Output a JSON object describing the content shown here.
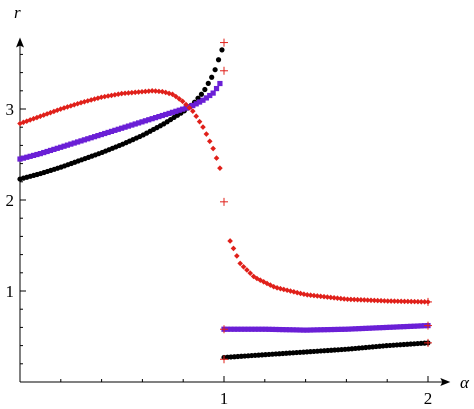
{
  "chart_data": {
    "type": "scatter",
    "title": "",
    "xlabel": "α",
    "ylabel": "r",
    "xlim": [
      0,
      2.08
    ],
    "ylim": [
      0,
      3.72
    ],
    "x_ticks": [
      {
        "value": 1,
        "label": "1"
      },
      {
        "value": 2,
        "label": "2"
      }
    ],
    "y_ticks": [
      {
        "value": 1,
        "label": "1"
      },
      {
        "value": 2,
        "label": "2"
      },
      {
        "value": 3,
        "label": "3"
      }
    ],
    "grid": false,
    "legend": "none",
    "series": [
      {
        "color": "#000000",
        "marker": "circle",
        "branches": [
          {
            "x_start": 0.0,
            "x_end": 0.99,
            "count": 60,
            "points": [
              [
                0.0,
                2.23
              ],
              [
                0.1,
                2.29
              ],
              [
                0.2,
                2.36
              ],
              [
                0.3,
                2.44
              ],
              [
                0.4,
                2.52
              ],
              [
                0.5,
                2.61
              ],
              [
                0.6,
                2.71
              ],
              [
                0.7,
                2.83
              ],
              [
                0.8,
                2.97
              ],
              [
                0.85,
                3.06
              ],
              [
                0.9,
                3.19
              ],
              [
                0.95,
                3.39
              ],
              [
                0.99,
                3.65
              ]
            ]
          },
          {
            "x_start": 1.0,
            "x_end": 2.0,
            "count": 60,
            "points": [
              [
                1.0,
                0.27
              ],
              [
                1.2,
                0.3
              ],
              [
                1.4,
                0.33
              ],
              [
                1.6,
                0.36
              ],
              [
                1.8,
                0.4
              ],
              [
                2.0,
                0.43
              ]
            ]
          }
        ]
      },
      {
        "color": "#6a1fd6",
        "marker": "square",
        "branches": [
          {
            "x_start": 0.0,
            "x_end": 0.98,
            "count": 60,
            "points": [
              [
                0.0,
                2.45
              ],
              [
                0.1,
                2.51
              ],
              [
                0.2,
                2.58
              ],
              [
                0.3,
                2.65
              ],
              [
                0.4,
                2.72
              ],
              [
                0.5,
                2.79
              ],
              [
                0.6,
                2.86
              ],
              [
                0.7,
                2.93
              ],
              [
                0.8,
                3.0
              ],
              [
                0.85,
                3.04
              ],
              [
                0.9,
                3.1
              ],
              [
                0.95,
                3.18
              ],
              [
                0.98,
                3.28
              ]
            ]
          },
          {
            "x_start": 1.0,
            "x_end": 2.0,
            "count": 60,
            "points": [
              [
                1.0,
                0.58
              ],
              [
                1.2,
                0.58
              ],
              [
                1.4,
                0.57
              ],
              [
                1.6,
                0.58
              ],
              [
                1.8,
                0.6
              ],
              [
                2.0,
                0.62
              ]
            ]
          }
        ]
      },
      {
        "color": "#e0201a",
        "marker": "diamond",
        "branches": [
          {
            "x_start": 0.0,
            "x_end": 0.98,
            "count": 60,
            "points": [
              [
                0.0,
                2.84
              ],
              [
                0.1,
                2.92
              ],
              [
                0.2,
                3.0
              ],
              [
                0.3,
                3.07
              ],
              [
                0.4,
                3.13
              ],
              [
                0.5,
                3.17
              ],
              [
                0.6,
                3.19
              ],
              [
                0.65,
                3.2
              ],
              [
                0.7,
                3.19
              ],
              [
                0.75,
                3.16
              ],
              [
                0.8,
                3.08
              ],
              [
                0.85,
                2.97
              ],
              [
                0.9,
                2.79
              ],
              [
                0.95,
                2.55
              ],
              [
                0.98,
                2.35
              ]
            ]
          },
          {
            "x_start": 1.03,
            "x_end": 2.0,
            "count": 60,
            "points": [
              [
                1.03,
                1.55
              ],
              [
                1.08,
                1.3
              ],
              [
                1.15,
                1.15
              ],
              [
                1.25,
                1.04
              ],
              [
                1.4,
                0.96
              ],
              [
                1.6,
                0.91
              ],
              [
                1.8,
                0.89
              ],
              [
                2.0,
                0.88
              ]
            ]
          }
        ]
      }
    ],
    "markers": [
      {
        "color": "#e0201a",
        "symbol": "+",
        "points": [
          [
            1.0,
            3.73
          ],
          [
            1.0,
            3.42
          ],
          [
            1.0,
            1.98
          ],
          [
            1.0,
            0.58
          ],
          [
            1.0,
            0.25
          ],
          [
            2.0,
            0.88
          ],
          [
            2.0,
            0.62
          ],
          [
            2.0,
            0.43
          ]
        ]
      }
    ]
  }
}
